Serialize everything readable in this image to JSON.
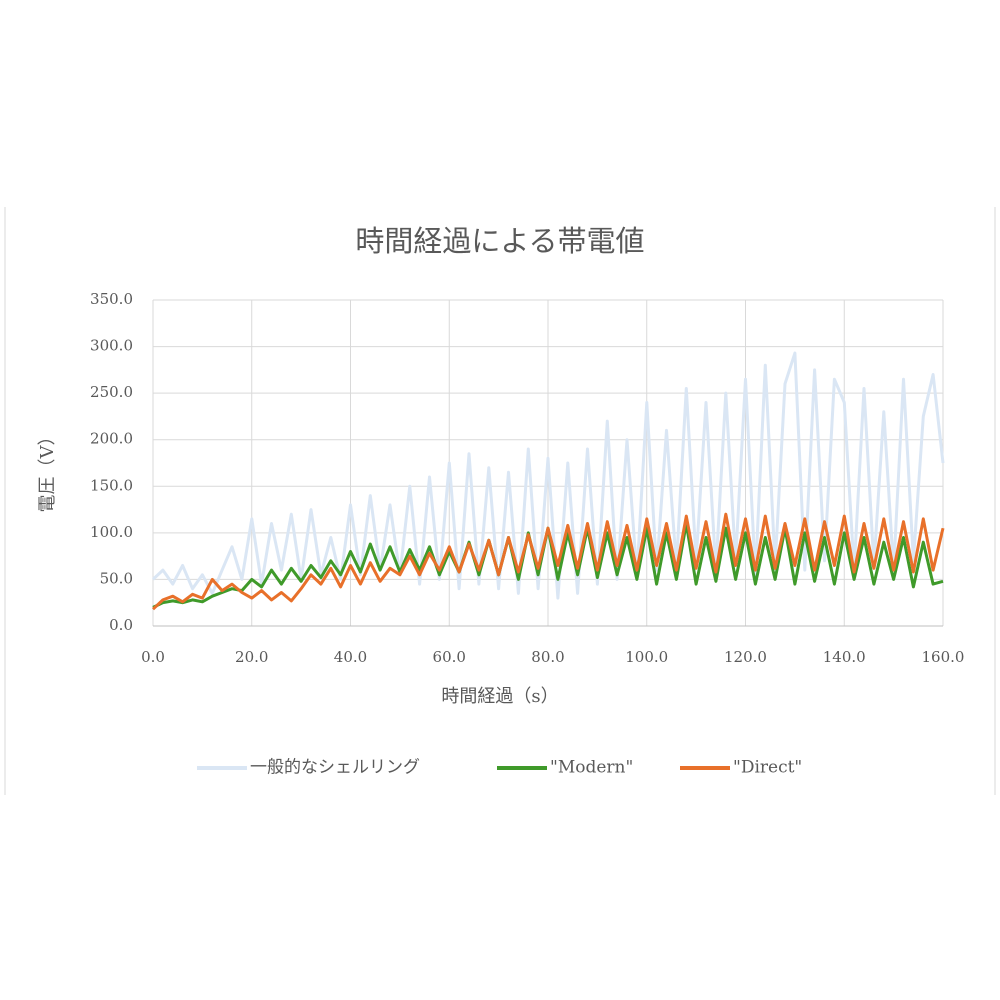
{
  "chart_data": {
    "type": "line",
    "title": "時間経過による帯電値",
    "x_label": "時間経過（s）",
    "y_label": "電圧（V）",
    "x": [
      0,
      2,
      4,
      6,
      8,
      10,
      12,
      14,
      16,
      18,
      20,
      22,
      24,
      26,
      28,
      30,
      32,
      34,
      36,
      38,
      40,
      42,
      44,
      46,
      48,
      50,
      52,
      54,
      56,
      58,
      60,
      62,
      64,
      66,
      68,
      70,
      72,
      74,
      76,
      78,
      80,
      82,
      84,
      86,
      88,
      90,
      92,
      94,
      96,
      98,
      100,
      102,
      104,
      106,
      108,
      110,
      112,
      114,
      116,
      118,
      120,
      122,
      124,
      126,
      128,
      130,
      132,
      134,
      136,
      138,
      140,
      142,
      144,
      146,
      148,
      150,
      152,
      154,
      156,
      158,
      160
    ],
    "series": [
      {
        "name": "一般的なシェルリング",
        "color": "#dae6f4",
        "values": [
          50,
          60,
          45,
          65,
          40,
          55,
          35,
          60,
          85,
          50,
          115,
          45,
          110,
          60,
          120,
          50,
          125,
          55,
          95,
          50,
          130,
          55,
          140,
          60,
          130,
          55,
          150,
          45,
          160,
          50,
          175,
          40,
          185,
          45,
          170,
          40,
          165,
          35,
          190,
          40,
          180,
          30,
          175,
          35,
          190,
          45,
          220,
          50,
          200,
          55,
          240,
          60,
          210,
          65,
          255,
          70,
          240,
          60,
          250,
          70,
          265,
          55,
          280,
          65,
          260,
          293,
          60,
          275,
          70,
          265,
          240,
          60,
          255,
          65,
          230,
          60,
          265,
          70,
          225,
          270,
          175
        ]
      },
      {
        "name": "\"Modern\"",
        "color": "#3f9a2a",
        "values": [
          20,
          25,
          27,
          25,
          28,
          26,
          32,
          36,
          40,
          38,
          50,
          42,
          60,
          45,
          62,
          48,
          65,
          52,
          70,
          55,
          80,
          58,
          88,
          60,
          85,
          58,
          82,
          60,
          85,
          55,
          80,
          58,
          90,
          55,
          92,
          55,
          95,
          50,
          100,
          55,
          105,
          50,
          100,
          55,
          105,
          52,
          100,
          55,
          95,
          50,
          105,
          45,
          100,
          50,
          110,
          45,
          95,
          48,
          105,
          50,
          100,
          45,
          95,
          50,
          105,
          45,
          100,
          48,
          95,
          45,
          100,
          50,
          95,
          45,
          90,
          50,
          95,
          42,
          90,
          45,
          48
        ]
      },
      {
        "name": "\"Direct\"",
        "color": "#e8702a",
        "values": [
          18,
          28,
          32,
          26,
          34,
          30,
          50,
          38,
          45,
          36,
          30,
          38,
          28,
          36,
          27,
          40,
          55,
          45,
          62,
          42,
          65,
          45,
          68,
          48,
          62,
          55,
          75,
          55,
          78,
          60,
          85,
          58,
          88,
          60,
          92,
          55,
          95,
          58,
          98,
          62,
          105,
          65,
          108,
          62,
          110,
          60,
          112,
          65,
          108,
          60,
          115,
          65,
          110,
          60,
          118,
          62,
          112,
          58,
          120,
          65,
          115,
          60,
          118,
          62,
          110,
          65,
          115,
          60,
          112,
          65,
          118,
          58,
          110,
          62,
          115,
          60,
          112,
          58,
          115,
          60,
          105
        ]
      }
    ],
    "xlim": [
      0,
      160
    ],
    "xticks": [
      {
        "value": 0,
        "label": "0.0"
      },
      {
        "value": 20,
        "label": "20.0"
      },
      {
        "value": 40,
        "label": "40.0"
      },
      {
        "value": 60,
        "label": "60.0"
      },
      {
        "value": 80,
        "label": "80.0"
      },
      {
        "value": 100,
        "label": "100.0"
      },
      {
        "value": 120,
        "label": "120.0"
      },
      {
        "value": 140,
        "label": "140.0"
      },
      {
        "value": 160,
        "label": "160.0"
      }
    ],
    "ylim": [
      0,
      350
    ],
    "yticks": [
      {
        "value": 0,
        "label": "0.0"
      },
      {
        "value": 50,
        "label": "50.0"
      },
      {
        "value": 100,
        "label": "100.0"
      },
      {
        "value": 150,
        "label": "150.0"
      },
      {
        "value": 200,
        "label": "200.0"
      },
      {
        "value": 250,
        "label": "250.0"
      },
      {
        "value": 300,
        "label": "300.0"
      },
      {
        "value": 350,
        "label": "350.0"
      }
    ],
    "grid": true,
    "legend": "bottom"
  }
}
